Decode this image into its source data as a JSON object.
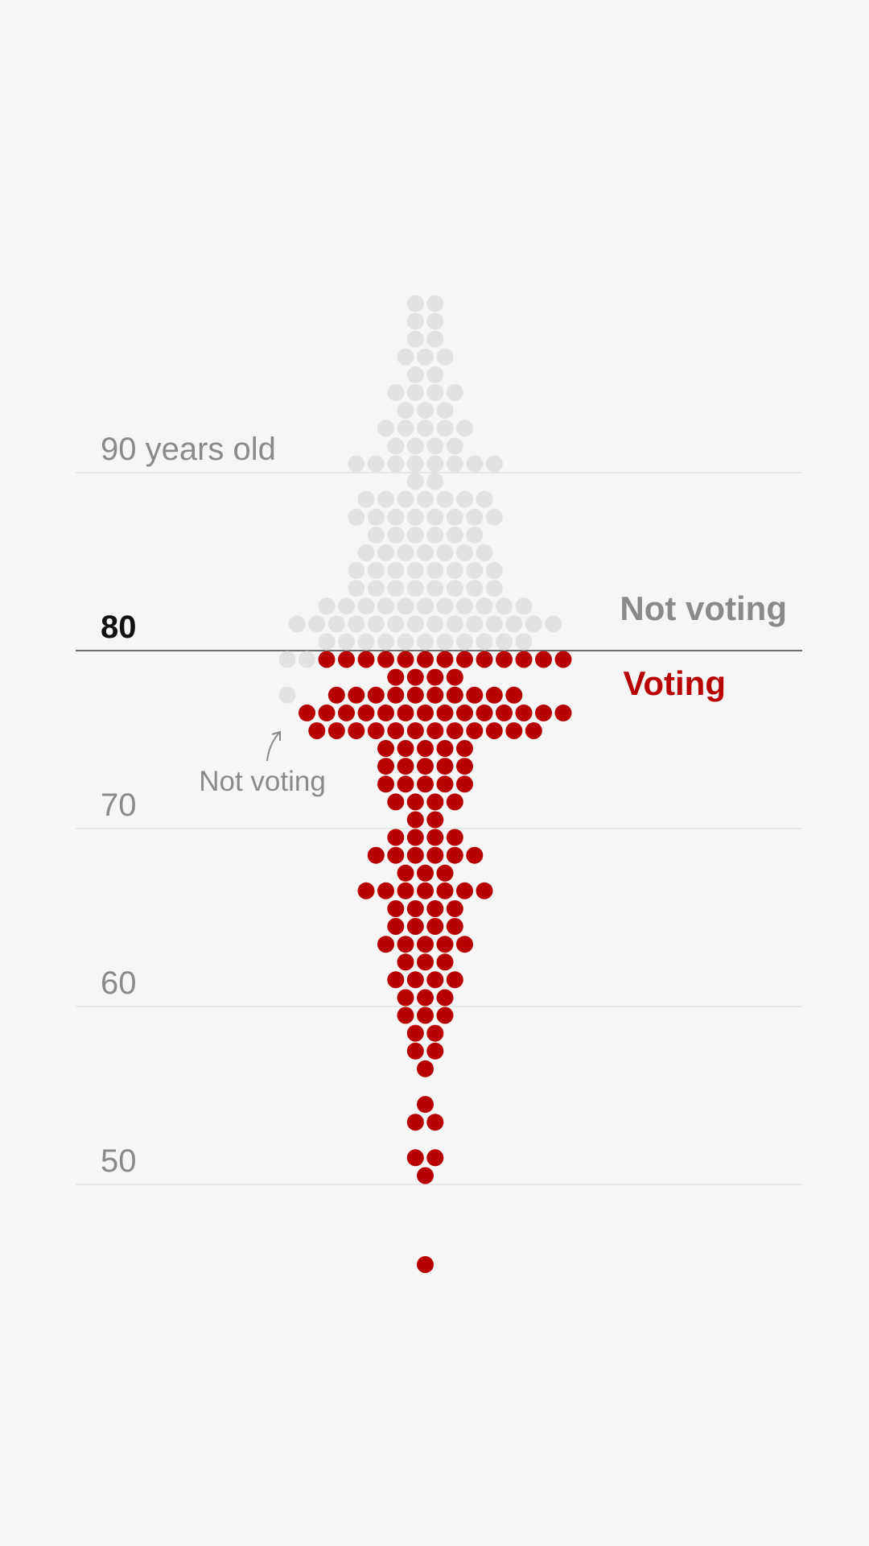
{
  "colors": {
    "voting": "#b80000",
    "not_voting": "#e2e2e2",
    "gridline": "#e2e2e2",
    "threshold_line": "#6e6e6e",
    "background": "#f6f6f6"
  },
  "chart_data": {
    "type": "beeswarm",
    "unit": "years old",
    "yaxis": {
      "ylim": [
        45,
        100
      ],
      "ticks": [
        {
          "value": 90,
          "label": "90 years old",
          "bold": false
        },
        {
          "value": 80,
          "label": "80",
          "bold": true
        },
        {
          "value": 70,
          "label": "70",
          "bold": false
        },
        {
          "value": 60,
          "label": "60",
          "bold": false
        },
        {
          "value": 50,
          "label": "50",
          "bold": false
        }
      ]
    },
    "threshold": {
      "value": 80
    },
    "legend": {
      "not_voting": "Not voting",
      "voting": "Voting"
    },
    "annotation": {
      "text": "Not voting"
    },
    "series": [
      {
        "name": "Not voting",
        "rows": [
          {
            "age": 99.5,
            "count": 2
          },
          {
            "age": 98.5,
            "count": 2
          },
          {
            "age": 97.5,
            "count": 2
          },
          {
            "age": 96.5,
            "count": 3
          },
          {
            "age": 95.5,
            "count": 2
          },
          {
            "age": 94.5,
            "count": 4
          },
          {
            "age": 93.5,
            "count": 3
          },
          {
            "age": 92.5,
            "count": 5
          },
          {
            "age": 91.5,
            "count": 4
          },
          {
            "age": 90.5,
            "count": 8
          },
          {
            "age": 89.5,
            "count": 2
          },
          {
            "age": 88.5,
            "count": 7
          },
          {
            "age": 87.5,
            "count": 8
          },
          {
            "age": 86.5,
            "count": 6
          },
          {
            "age": 85.5,
            "count": 7
          },
          {
            "age": 84.5,
            "count": 8
          },
          {
            "age": 83.5,
            "count": 8
          },
          {
            "age": 82.5,
            "count": 11
          },
          {
            "age": 81.5,
            "count": 14
          },
          {
            "age": 80.5,
            "count": 11
          },
          {
            "age": 79.5,
            "count": 2,
            "offset": -6.5
          },
          {
            "age": 77.5,
            "count": 1,
            "offset": -7
          }
        ]
      },
      {
        "name": "Voting",
        "rows": [
          {
            "age": 79.5,
            "count": 13,
            "offset": 1
          },
          {
            "age": 78.5,
            "count": 4
          },
          {
            "age": 77.5,
            "count": 10
          },
          {
            "age": 76.5,
            "count": 14,
            "offset": 0.5
          },
          {
            "age": 75.5,
            "count": 12
          },
          {
            "age": 74.5,
            "count": 5
          },
          {
            "age": 73.5,
            "count": 5
          },
          {
            "age": 72.5,
            "count": 5
          },
          {
            "age": 71.5,
            "count": 4
          },
          {
            "age": 70.5,
            "count": 2
          },
          {
            "age": 69.5,
            "count": 4
          },
          {
            "age": 68.5,
            "count": 6
          },
          {
            "age": 67.5,
            "count": 3
          },
          {
            "age": 66.5,
            "count": 7
          },
          {
            "age": 65.5,
            "count": 4
          },
          {
            "age": 64.5,
            "count": 4
          },
          {
            "age": 63.5,
            "count": 5
          },
          {
            "age": 62.5,
            "count": 3
          },
          {
            "age": 61.5,
            "count": 4
          },
          {
            "age": 60.5,
            "count": 3
          },
          {
            "age": 59.5,
            "count": 3
          },
          {
            "age": 58.5,
            "count": 2
          },
          {
            "age": 57.5,
            "count": 2
          },
          {
            "age": 56.5,
            "count": 1
          },
          {
            "age": 54.5,
            "count": 1
          },
          {
            "age": 53.5,
            "count": 2
          },
          {
            "age": 51.5,
            "count": 2
          },
          {
            "age": 50.5,
            "count": 1
          },
          {
            "age": 45.5,
            "count": 1
          }
        ]
      }
    ]
  }
}
